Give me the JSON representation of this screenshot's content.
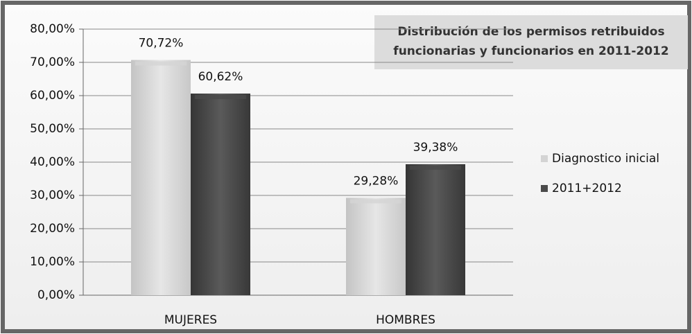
{
  "chart_data": {
    "type": "bar",
    "title": [
      "Distribución de los permisos retribuidos",
      "funcionarias y funcionarios en 2011-2012"
    ],
    "categories": [
      "MUJERES",
      "HOMBRES"
    ],
    "series": [
      {
        "name": "Diagnostico inicial",
        "color": "#d4d4d4",
        "values": [
          70.72,
          29.28
        ],
        "value_labels": [
          "70,72%",
          "29,28%"
        ]
      },
      {
        "name": "2011+2012",
        "color": "#4a4a4a",
        "values": [
          60.62,
          39.38
        ],
        "value_labels": [
          "60,62%",
          "39,38%"
        ]
      }
    ],
    "ylim": [
      0,
      80
    ],
    "yticks": [
      {
        "value": 0,
        "label": "0,00%"
      },
      {
        "value": 10,
        "label": "10,00%"
      },
      {
        "value": 20,
        "label": "20,00%"
      },
      {
        "value": 30,
        "label": "30,00%"
      },
      {
        "value": 40,
        "label": "40,00%"
      },
      {
        "value": 50,
        "label": "50,00%"
      },
      {
        "value": 60,
        "label": "60,00%"
      },
      {
        "value": 70,
        "label": "70,00%"
      },
      {
        "value": 80,
        "label": "80,00%"
      }
    ],
    "grid": true,
    "legend": "right"
  }
}
